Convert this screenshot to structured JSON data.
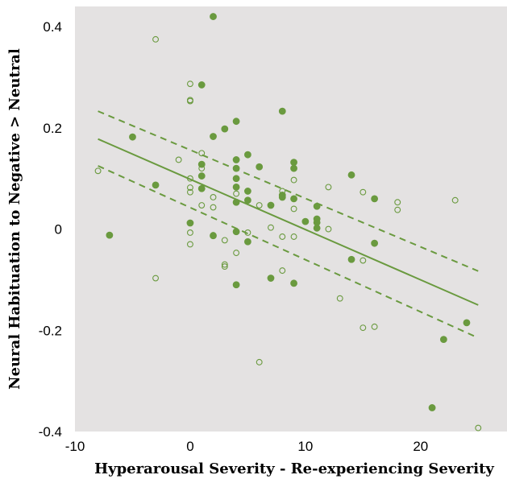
{
  "chart_data": {
    "type": "scatter",
    "title": "",
    "xlabel": "Hyperarousal Severity - Re-experiencing Severity",
    "ylabel": "Neural Habituation to Negative > Neutral",
    "xlim": [
      -10,
      27.5
    ],
    "ylim": [
      -0.4,
      0.44
    ],
    "xticks": [
      -10,
      0,
      10,
      20
    ],
    "yticks": [
      -0.4,
      -0.2,
      0,
      0.2,
      0.4
    ],
    "xtick_labels": [
      "-10",
      "0",
      "10",
      "20"
    ],
    "ytick_labels": [
      "-0.4",
      "-0.2",
      "0",
      "0.2",
      "0.4"
    ],
    "grid": false,
    "background_color": "#e4e2e2",
    "series_color": "#6a9a3f",
    "series": [
      {
        "marker": "filled",
        "points": [
          [
            2,
            0.42
          ],
          [
            1,
            0.285
          ],
          [
            8,
            0.233
          ],
          [
            4,
            0.213
          ],
          [
            3,
            0.198
          ],
          [
            2,
            0.183
          ],
          [
            -5,
            0.182
          ],
          [
            5,
            0.147
          ],
          [
            4,
            0.137
          ],
          [
            9,
            0.132
          ],
          [
            1,
            0.128
          ],
          [
            6,
            0.123
          ],
          [
            4,
            0.12
          ],
          [
            9,
            0.12
          ],
          [
            14,
            0.107
          ],
          [
            1,
            0.105
          ],
          [
            4,
            0.1
          ],
          [
            -3,
            0.087
          ],
          [
            4,
            0.083
          ],
          [
            1,
            0.08
          ],
          [
            5,
            0.075
          ],
          [
            8,
            0.067
          ],
          [
            8,
            0.063
          ],
          [
            9,
            0.06
          ],
          [
            16,
            0.06
          ],
          [
            5,
            0.057
          ],
          [
            4,
            0.053
          ],
          [
            7,
            0.047
          ],
          [
            11,
            0.045
          ],
          [
            11,
            0.02
          ],
          [
            10,
            0.015
          ],
          [
            11,
            0.013
          ],
          [
            0,
            0.012
          ],
          [
            11,
            0.002
          ],
          [
            4,
            -0.005
          ],
          [
            -7,
            -0.012
          ],
          [
            2,
            -0.013
          ],
          [
            5,
            -0.025
          ],
          [
            16,
            -0.028
          ],
          [
            14,
            -0.06
          ],
          [
            7,
            -0.097
          ],
          [
            9,
            -0.107
          ],
          [
            4,
            -0.11
          ],
          [
            24,
            -0.185
          ],
          [
            22,
            -0.218
          ],
          [
            21,
            -0.353
          ]
        ]
      },
      {
        "marker": "open",
        "points": [
          [
            -3,
            0.375
          ],
          [
            0,
            0.287
          ],
          [
            0,
            0.255
          ],
          [
            0,
            0.253
          ],
          [
            1,
            0.15
          ],
          [
            -1,
            0.137
          ],
          [
            1,
            0.12
          ],
          [
            0,
            0.1
          ],
          [
            -8,
            0.115
          ],
          [
            0,
            0.082
          ],
          [
            0,
            0.073
          ],
          [
            12,
            0.083
          ],
          [
            9,
            0.097
          ],
          [
            4,
            0.07
          ],
          [
            15,
            0.073
          ],
          [
            2,
            0.063
          ],
          [
            8,
            0.075
          ],
          [
            1,
            0.047
          ],
          [
            2,
            0.043
          ],
          [
            6,
            0.047
          ],
          [
            9,
            0.04
          ],
          [
            23,
            0.057
          ],
          [
            18,
            0.053
          ],
          [
            18,
            0.038
          ],
          [
            7,
            0.003
          ],
          [
            12,
            0.0
          ],
          [
            0,
            -0.007
          ],
          [
            5,
            -0.007
          ],
          [
            2,
            -0.012
          ],
          [
            8,
            -0.015
          ],
          [
            9,
            -0.015
          ],
          [
            3,
            -0.022
          ],
          [
            0,
            -0.03
          ],
          [
            4,
            -0.047
          ],
          [
            15,
            -0.062
          ],
          [
            3,
            -0.07
          ],
          [
            3,
            -0.074
          ],
          [
            8,
            -0.082
          ],
          [
            -3,
            -0.097
          ],
          [
            13,
            -0.137
          ],
          [
            15,
            -0.195
          ],
          [
            16,
            -0.193
          ],
          [
            6,
            -0.263
          ],
          [
            25,
            -0.393
          ]
        ]
      }
    ],
    "fit_line": {
      "x": [
        -8,
        25
      ],
      "y": [
        0.178,
        -0.15
      ]
    },
    "confidence_band": {
      "upper": {
        "x": [
          -8,
          25
        ],
        "y": [
          0.233,
          -0.083
        ]
      },
      "lower": {
        "x": [
          -8,
          25
        ],
        "y": [
          0.125,
          -0.215
        ]
      }
    }
  }
}
